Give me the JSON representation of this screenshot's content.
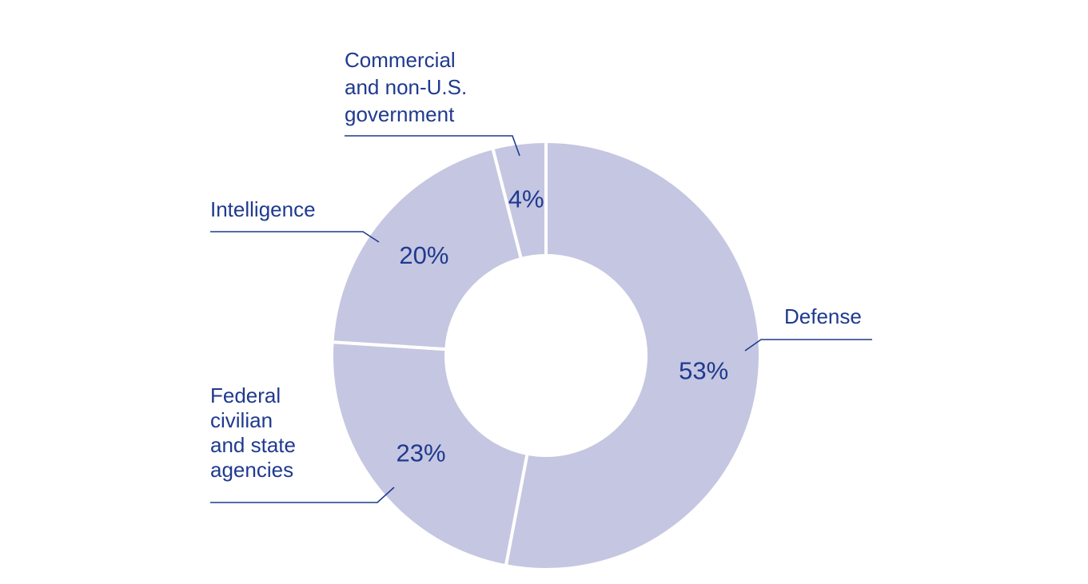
{
  "chart_data": {
    "type": "pie",
    "title": "",
    "donut": true,
    "slice_color": "#c5c6e1",
    "separator_color": "#ffffff",
    "text_color": "#1f3a8f",
    "legend": "none",
    "slices": [
      {
        "name": "Defense",
        "label_lines": [
          "Defense"
        ],
        "value": 53,
        "display": "53%"
      },
      {
        "name": "Federal civilian and state agencies",
        "label_lines": [
          "Federal",
          "civilian",
          "and state",
          "agencies"
        ],
        "value": 23,
        "display": "23%"
      },
      {
        "name": "Intelligence",
        "label_lines": [
          "Intelligence"
        ],
        "value": 20,
        "display": "20%"
      },
      {
        "name": "Commercial and non-U.S. government",
        "label_lines": [
          "Commercial",
          "and non-U.S.",
          "government"
        ],
        "value": 4,
        "display": "4%"
      }
    ]
  }
}
